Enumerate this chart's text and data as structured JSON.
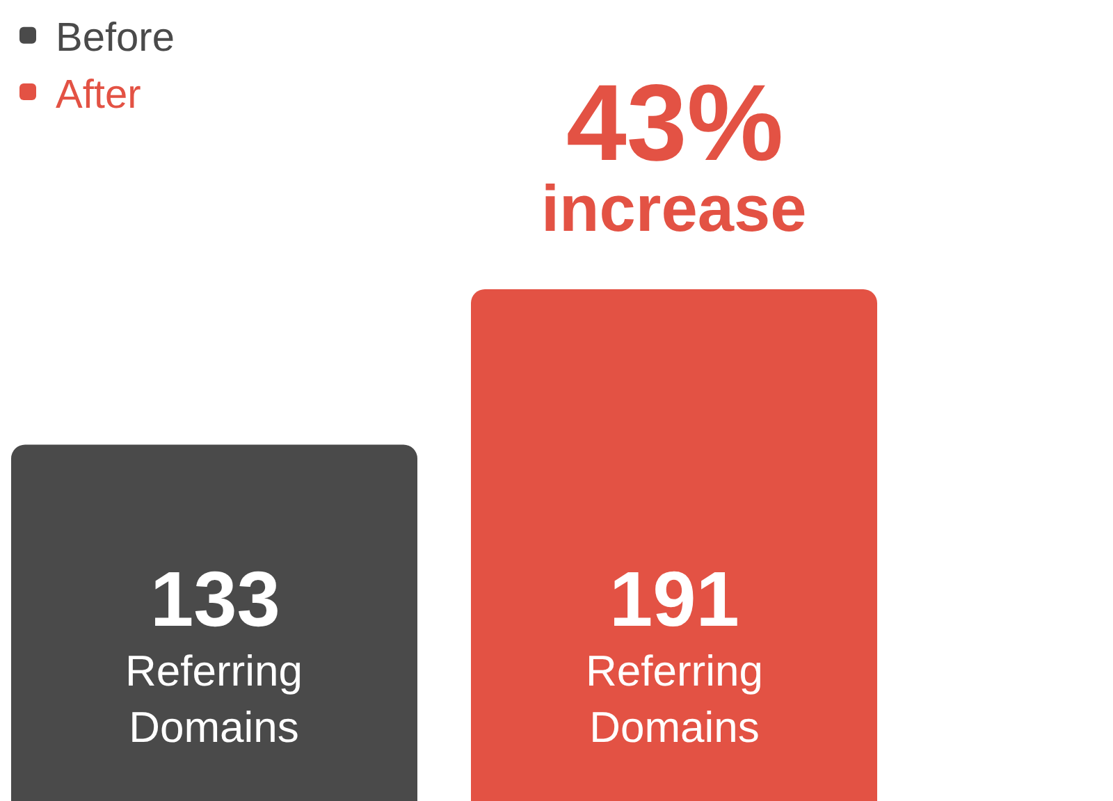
{
  "chart_data": {
    "type": "bar",
    "categories": [
      null
    ],
    "series": [
      {
        "name": "Before",
        "color": "#4a4a4a",
        "values": [
          133
        ],
        "value_labels": [
          "133\nReferring\nDomains"
        ]
      },
      {
        "name": "After",
        "color": "#e35244",
        "values": [
          191
        ],
        "value_labels": [
          "191\nReferring\nDomains"
        ]
      }
    ],
    "tick_labels": false,
    "legend": "top left",
    "annotations": [
      "43%",
      "increase"
    ]
  }
}
